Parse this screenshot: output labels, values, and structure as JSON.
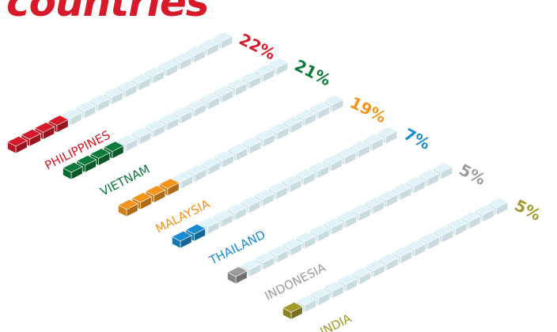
{
  "title": "countries",
  "chart_data": {
    "type": "bar",
    "title": "countries",
    "categories": [
      "PHILIPPINES",
      "VIETNAM",
      "MALAYSIA",
      "THAILAND",
      "INDONESIA",
      "INDIA"
    ],
    "values": [
      22,
      21,
      19,
      7,
      5,
      5
    ],
    "value_labels": [
      "22%",
      "21%",
      "19%",
      "7%",
      "5%",
      "5%"
    ],
    "unit": "%",
    "total_blocks_per_bar": 16,
    "filled_blocks": [
      4,
      4,
      4,
      2,
      1,
      1
    ],
    "colors": [
      "#d71a29",
      "#0b7a3b",
      "#f5941d",
      "#1a8ccf",
      "#9b9b9b",
      "#a39a2c"
    ],
    "empty_color": "#dff3f8"
  }
}
